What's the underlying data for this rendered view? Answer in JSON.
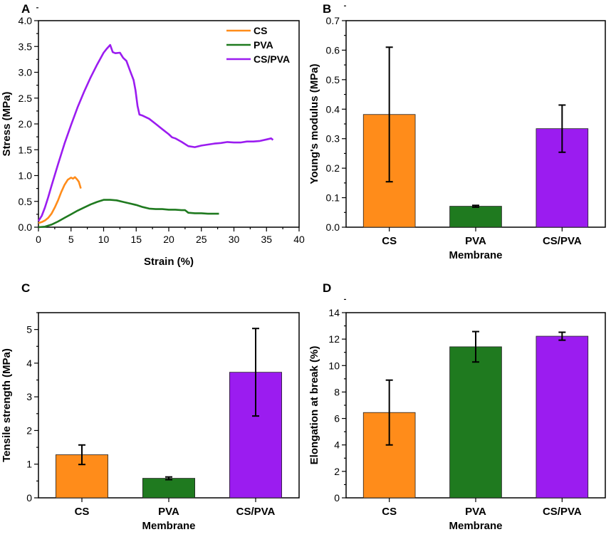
{
  "colors": {
    "CS": "#ff8c1a",
    "PVA": "#1f7a1f",
    "CS/PVA": "#9b1cf0"
  },
  "chart_data": [
    {
      "panel": "A",
      "type": "line",
      "xlabel": "Strain (%)",
      "ylabel": "Stress (MPa)",
      "xlim": [
        0,
        40
      ],
      "ylim": [
        0,
        4.0
      ],
      "xticks": [
        "0",
        "5",
        "10",
        "15",
        "20",
        "25",
        "30",
        "35",
        "40"
      ],
      "yticks": [
        "0.0",
        "0.5",
        "1.0",
        "1.5",
        "2.0",
        "2.5",
        "3.0",
        "3.5",
        "4.0"
      ],
      "legend_position": "top-right",
      "series": [
        {
          "name": "CS",
          "x": [
            0,
            0.5,
            1,
            1.5,
            2,
            2.5,
            3,
            3.5,
            4,
            4.5,
            5,
            5.3,
            5.6,
            5.9,
            6.2,
            6.5
          ],
          "y": [
            0.08,
            0.1,
            0.13,
            0.18,
            0.26,
            0.38,
            0.52,
            0.68,
            0.82,
            0.92,
            0.96,
            0.94,
            0.97,
            0.93,
            0.88,
            0.75
          ]
        },
        {
          "name": "PVA",
          "x": [
            0,
            1,
            2,
            3,
            4,
            5,
            6,
            7,
            8,
            9,
            10,
            11,
            12,
            13,
            14,
            15,
            16,
            17,
            18,
            19,
            20,
            21,
            22,
            22.5,
            23,
            24,
            25,
            26,
            27,
            27.7
          ],
          "y": [
            0.0,
            0.01,
            0.05,
            0.11,
            0.18,
            0.25,
            0.32,
            0.38,
            0.44,
            0.49,
            0.53,
            0.53,
            0.52,
            0.49,
            0.46,
            0.43,
            0.39,
            0.36,
            0.35,
            0.35,
            0.34,
            0.34,
            0.33,
            0.33,
            0.28,
            0.27,
            0.27,
            0.26,
            0.26,
            0.26
          ]
        },
        {
          "name": "CS/PVA",
          "x": [
            0,
            0.5,
            1,
            1.5,
            2,
            3,
            4,
            5,
            6,
            7,
            8,
            9,
            10,
            10.5,
            11,
            11.4,
            11.8,
            12.5,
            13,
            13.5,
            14,
            14.3,
            14.6,
            14.9,
            15.2,
            15.5,
            16,
            17,
            18,
            19,
            20,
            20.5,
            21,
            22,
            23,
            24,
            25,
            26,
            27,
            28,
            29,
            30,
            31,
            32,
            33,
            34,
            35,
            35.7,
            36
          ],
          "y": [
            0.12,
            0.22,
            0.38,
            0.58,
            0.8,
            1.22,
            1.62,
            1.98,
            2.32,
            2.62,
            2.9,
            3.15,
            3.38,
            3.46,
            3.53,
            3.39,
            3.37,
            3.38,
            3.28,
            3.22,
            3.05,
            2.95,
            2.85,
            2.65,
            2.35,
            2.18,
            2.16,
            2.1,
            2.0,
            1.9,
            1.8,
            1.74,
            1.72,
            1.65,
            1.57,
            1.55,
            1.58,
            1.6,
            1.62,
            1.63,
            1.65,
            1.64,
            1.64,
            1.66,
            1.66,
            1.67,
            1.7,
            1.72,
            1.69
          ]
        }
      ]
    },
    {
      "panel": "B",
      "type": "bar",
      "xlabel": "Membrane",
      "ylabel": "Young's modulus (MPa)",
      "categories": [
        "CS",
        "PVA",
        "CS/PVA"
      ],
      "values": [
        0.382,
        0.071,
        0.334
      ],
      "errors": [
        0.228,
        0.003,
        0.08
      ],
      "ylim": [
        0,
        0.7
      ],
      "yticks": [
        "0.0",
        "0.1",
        "0.2",
        "0.3",
        "0.4",
        "0.5",
        "0.6",
        "0.7"
      ]
    },
    {
      "panel": "C",
      "type": "bar",
      "xlabel": "Membrane",
      "ylabel": "Tensile strength (MPa)",
      "categories": [
        "CS",
        "PVA",
        "CS/PVA"
      ],
      "values": [
        1.28,
        0.58,
        3.73
      ],
      "errors": [
        0.29,
        0.04,
        1.3
      ],
      "ylim": [
        0,
        5.5
      ],
      "yticks": [
        "0",
        "1",
        "2",
        "3",
        "4",
        "5"
      ]
    },
    {
      "panel": "D",
      "type": "bar",
      "xlabel": "Membrane",
      "ylabel": "Elongation at break (%)",
      "categories": [
        "CS",
        "PVA",
        "CS/PVA"
      ],
      "values": [
        6.45,
        11.42,
        12.22
      ],
      "errors": [
        2.45,
        1.15,
        0.3
      ],
      "ylim": [
        0,
        14
      ],
      "yticks": [
        "0",
        "2",
        "4",
        "6",
        "8",
        "10",
        "12",
        "14"
      ]
    }
  ]
}
